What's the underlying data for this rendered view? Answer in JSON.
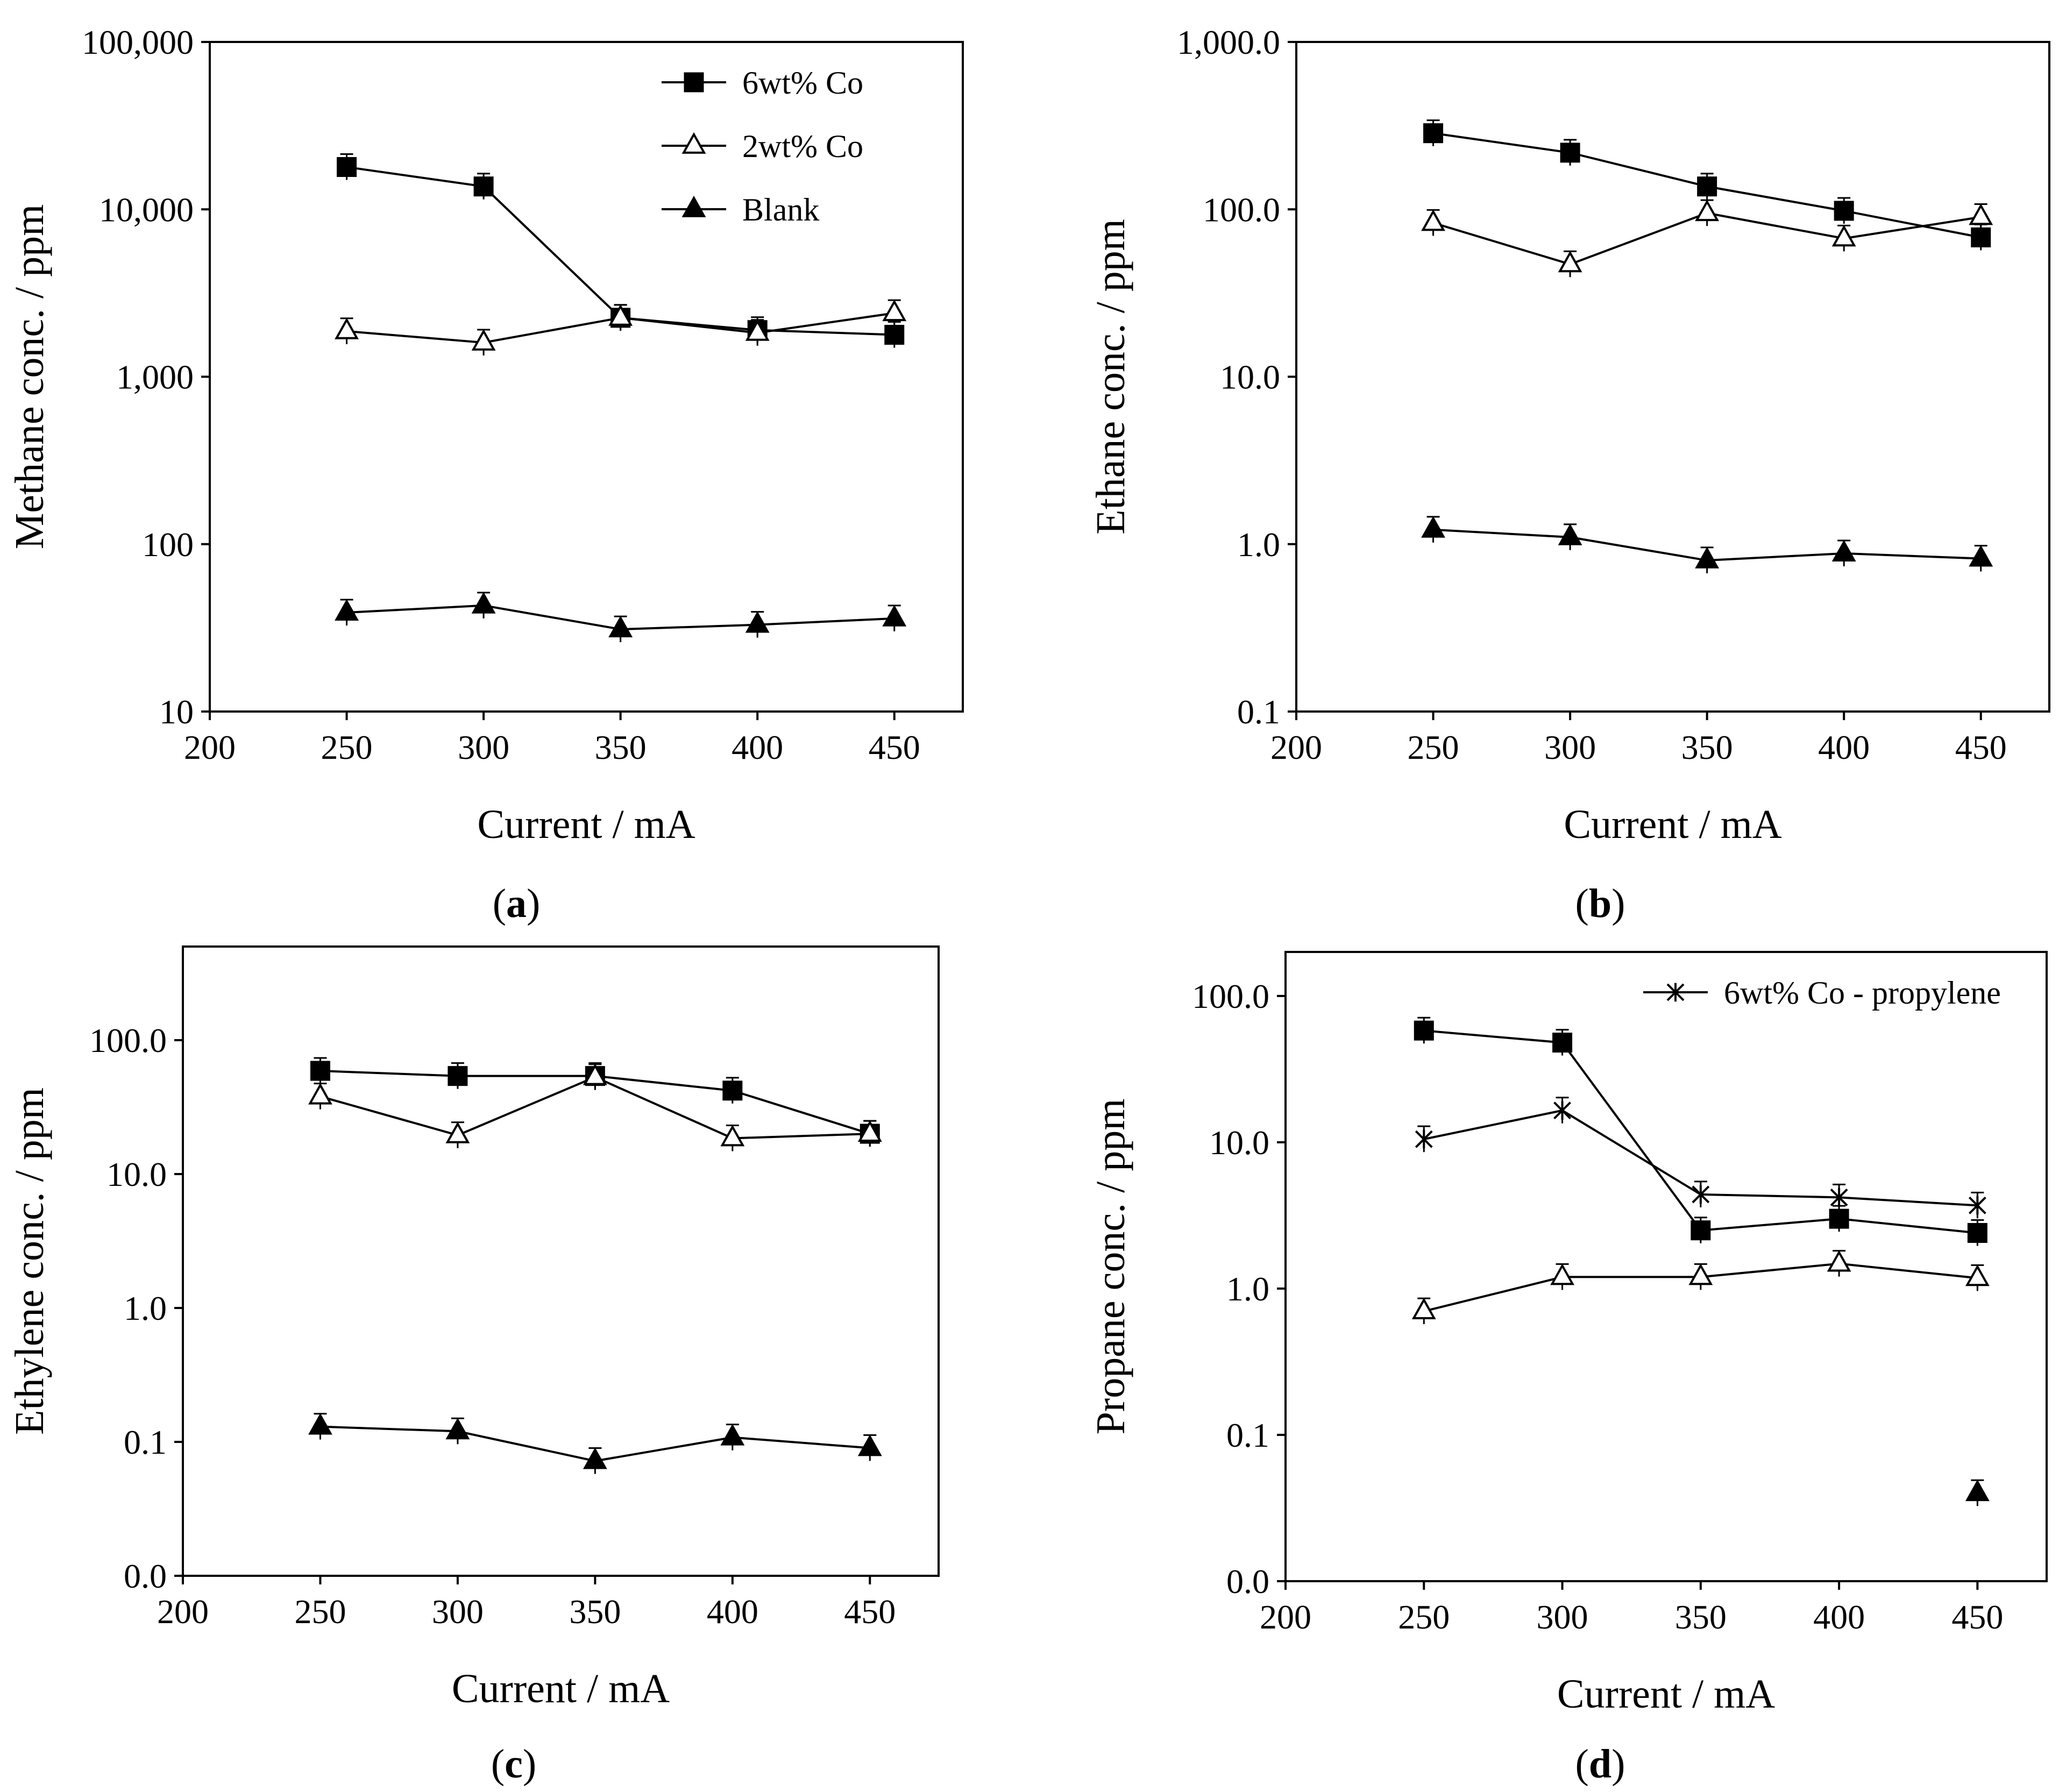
{
  "colors": {
    "ink": "#000000",
    "background": "#ffffff",
    "open_marker_fill": "#ffffff"
  },
  "icons": {
    "6wt% Co": "filled-square-marker",
    "2wt% Co": "open-triangle-marker",
    "Blank": "filled-triangle-marker",
    "6wt% Co - propylene": "star-cross-marker"
  },
  "chart_data": [
    {
      "id": "a",
      "type": "line",
      "caption_letter": "a",
      "xlabel": "Current / mA",
      "ylabel": "Methane conc. / ppm",
      "yscale": "log",
      "xlim": [
        200,
        475
      ],
      "ylim": [
        10,
        100000
      ],
      "xticks": [
        200,
        250,
        300,
        350,
        400,
        450
      ],
      "xtick_labels": [
        "200",
        "250",
        "300",
        "350",
        "400",
        "450"
      ],
      "yticks": [
        10,
        100,
        1000,
        10000,
        100000
      ],
      "ytick_labels": [
        "10",
        "100",
        "1,000",
        "10,000",
        "100,000"
      ],
      "legend_position": "top-right",
      "legend": [
        {
          "label": "6wt% Co",
          "marker": "square-filled"
        },
        {
          "label": "2wt% Co",
          "marker": "triangle-open"
        },
        {
          "label": "Blank",
          "marker": "triangle-filled"
        }
      ],
      "series": [
        {
          "name": "6wt% Co",
          "marker": "square-filled",
          "x": [
            250,
            300,
            350,
            400,
            450
          ],
          "values": [
            17900,
            13700,
            2250,
            1900,
            1780
          ]
        },
        {
          "name": "2wt% Co",
          "marker": "triangle-open",
          "x": [
            250,
            300,
            350,
            400,
            450
          ],
          "values": [
            1870,
            1600,
            2250,
            1830,
            2400
          ]
        },
        {
          "name": "Blank",
          "marker": "triangle-filled",
          "x": [
            250,
            300,
            350,
            400,
            450
          ],
          "values": [
            39,
            43,
            31,
            33,
            36
          ]
        }
      ]
    },
    {
      "id": "b",
      "type": "line",
      "caption_letter": "b",
      "xlabel": "Current / mA",
      "ylabel": "Ethane conc. / ppm",
      "yscale": "log",
      "xlim": [
        200,
        475
      ],
      "ylim": [
        0.1,
        1000
      ],
      "xticks": [
        200,
        250,
        300,
        350,
        400,
        450
      ],
      "xtick_labels": [
        "200",
        "250",
        "300",
        "350",
        "400",
        "450"
      ],
      "yticks": [
        0.1,
        1,
        10,
        100,
        1000
      ],
      "ytick_labels": [
        "0.1",
        "1.0",
        "10.0",
        "100.0",
        "1,000.0"
      ],
      "legend_position": "none",
      "legend": [],
      "series": [
        {
          "name": "6wt% Co",
          "marker": "square-filled",
          "x": [
            250,
            300,
            350,
            400,
            450
          ],
          "values": [
            285,
            218,
            137,
            98,
            68
          ]
        },
        {
          "name": "2wt% Co",
          "marker": "triangle-open",
          "x": [
            250,
            300,
            350,
            400,
            450
          ],
          "values": [
            83,
            47,
            95,
            67,
            90
          ]
        },
        {
          "name": "Blank",
          "marker": "triangle-filled",
          "x": [
            250,
            300,
            350,
            400,
            450
          ],
          "values": [
            1.22,
            1.1,
            0.8,
            0.88,
            0.82
          ]
        }
      ]
    },
    {
      "id": "c",
      "type": "line",
      "caption_letter": "c",
      "xlabel": "Current / mA",
      "ylabel": "Ethylene conc. / ppm",
      "yscale": "log",
      "xlim": [
        200,
        475
      ],
      "ylim": [
        0.01,
        500
      ],
      "xticks": [
        200,
        250,
        300,
        350,
        400,
        450
      ],
      "xtick_labels": [
        "200",
        "250",
        "300",
        "350",
        "400",
        "450"
      ],
      "yticks": [
        0.01,
        0.1,
        1,
        10,
        100
      ],
      "ytick_labels": [
        "0.0",
        "0.1",
        "1.0",
        "10.0",
        "100.0"
      ],
      "legend_position": "none",
      "legend": [],
      "series": [
        {
          "name": "6wt% Co",
          "marker": "square-filled",
          "x": [
            250,
            300,
            350,
            400,
            450
          ],
          "values": [
            59,
            54,
            54,
            42,
            20
          ]
        },
        {
          "name": "2wt% Co",
          "marker": "triangle-open",
          "x": [
            250,
            300,
            350,
            400,
            450
          ],
          "values": [
            38,
            19.5,
            53,
            18.5,
            20
          ]
        },
        {
          "name": "Blank",
          "marker": "triangle-filled",
          "x": [
            250,
            300,
            350,
            400,
            450
          ],
          "values": [
            0.13,
            0.12,
            0.072,
            0.108,
            0.09
          ]
        }
      ]
    },
    {
      "id": "d",
      "type": "line",
      "caption_letter": "d",
      "xlabel": "Current / mA",
      "ylabel": "Propane conc. / ppm",
      "yscale": "log",
      "xlim": [
        200,
        475
      ],
      "ylim": [
        0.01,
        200
      ],
      "xticks": [
        200,
        250,
        300,
        350,
        400,
        450
      ],
      "xtick_labels": [
        "200",
        "250",
        "300",
        "350",
        "400",
        "450"
      ],
      "yticks": [
        0.01,
        0.1,
        1,
        10,
        100
      ],
      "ytick_labels": [
        "0.0",
        "0.1",
        "1.0",
        "10.0",
        "100.0"
      ],
      "legend_position": "top-right",
      "legend": [
        {
          "label": "6wt% Co - propylene",
          "marker": "star"
        }
      ],
      "series": [
        {
          "name": "6wt% Co",
          "marker": "square-filled",
          "x": [
            250,
            300,
            350,
            400,
            450
          ],
          "values": [
            58,
            48,
            2.5,
            3.0,
            2.4
          ]
        },
        {
          "name": "6wt% Co - propylene",
          "marker": "star",
          "x": [
            250,
            300,
            350,
            400,
            450
          ],
          "values": [
            10.5,
            16.5,
            4.4,
            4.2,
            3.7
          ]
        },
        {
          "name": "2wt% Co",
          "marker": "triangle-open",
          "x": [
            250,
            300,
            350,
            400,
            450
          ],
          "values": [
            0.7,
            1.2,
            1.2,
            1.48,
            1.18
          ]
        },
        {
          "name": "Blank",
          "marker": "triangle-filled",
          "x": [
            450
          ],
          "values": [
            0.04
          ]
        }
      ]
    }
  ]
}
